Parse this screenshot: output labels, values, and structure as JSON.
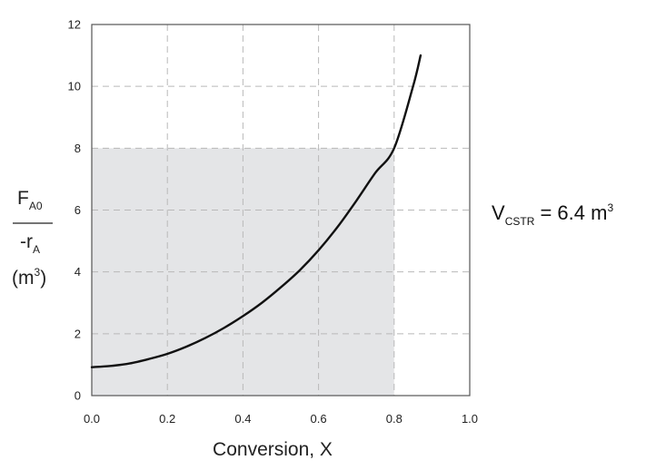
{
  "chart_data": {
    "type": "line",
    "xlabel": "Conversion, X",
    "ylabel": {
      "numerator_main": "F",
      "numerator_sub": "A0",
      "denominator_main": "-r",
      "denominator_sub": "A",
      "unit_main": "(m",
      "unit_sup": "3",
      "unit_close": ")"
    },
    "xlim": [
      0,
      1.0
    ],
    "ylim": [
      0,
      12
    ],
    "x_ticks": [
      "0.0",
      "0.2",
      "0.4",
      "0.6",
      "0.8",
      "1.0"
    ],
    "x_tick_values": [
      0,
      0.2,
      0.4,
      0.6,
      0.8,
      1.0
    ],
    "y_ticks": [
      "0",
      "2",
      "4",
      "6",
      "8",
      "10",
      "12"
    ],
    "y_tick_values": [
      0,
      2,
      4,
      6,
      8,
      10,
      12
    ],
    "grid": true,
    "series": [
      {
        "x": [
          0.0,
          0.05,
          0.1,
          0.15,
          0.2,
          0.25,
          0.3,
          0.35,
          0.4,
          0.45,
          0.5,
          0.55,
          0.6,
          0.65,
          0.7,
          0.75,
          0.8,
          0.85,
          0.87
        ],
        "y": [
          0.92,
          0.96,
          1.04,
          1.18,
          1.35,
          1.58,
          1.86,
          2.19,
          2.57,
          3.0,
          3.5,
          4.05,
          4.7,
          5.45,
          6.3,
          7.2,
          8.0,
          10.0,
          11.0
        ],
        "color": "#111111"
      }
    ],
    "shaded_region": {
      "x": [
        0,
        0.8
      ],
      "y": [
        0,
        8
      ],
      "color": "#e4e5e7"
    },
    "annotation": {
      "main": "V",
      "sub": "CSTR",
      "rest": " = 6.4 m",
      "sup": "3"
    }
  }
}
